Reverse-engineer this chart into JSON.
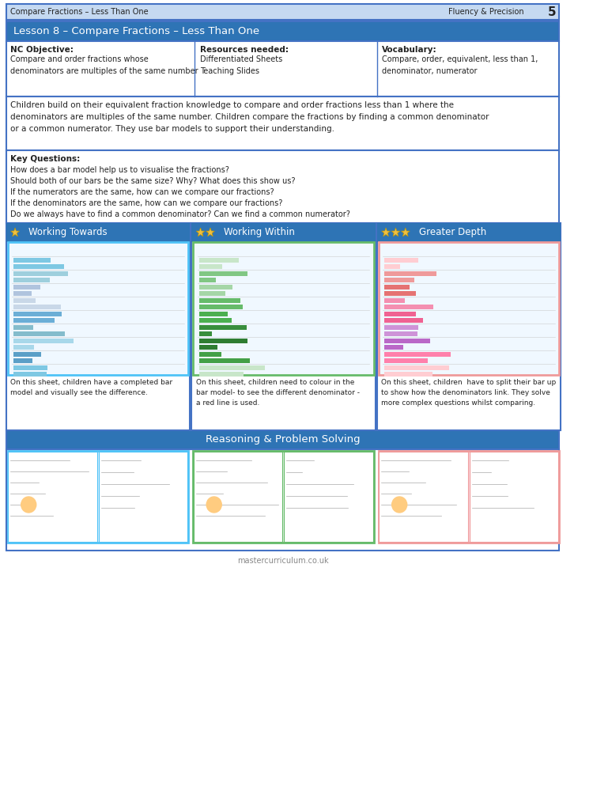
{
  "page_bg": "#ffffff",
  "header_bg": "#c5d9f1",
  "header_border": "#4472c4",
  "blue_header_bg": "#2e74b5",
  "blue_header_text": "#ffffff",
  "section_border": "#4472c4",
  "title_bar_text": "Lesson 8 – Compare Fractions – Less Than One",
  "top_left_text": "Compare Fractions – Less Than One",
  "top_right_label": "Fluency & Precision",
  "top_right_num": "5",
  "nc_objective_title": "NC Objective:",
  "nc_objective_body": "Compare and order fractions whose\ndenominators are multiples of the same number",
  "resources_title": "Resources needed:",
  "resources_body": "Differentiated Sheets\nTeaching Slides",
  "vocab_title": "Vocabulary:",
  "vocab_body": "Compare, order, equivalent, less than 1,\ndenominator, numerator",
  "description": "Children build on their equivalent fraction knowledge to compare and order fractions less than 1 where the\ndenominators are multiples of the same number. Children compare the fractions by finding a common denominator\nor a common numerator. They use bar models to support their understanding.",
  "key_questions_title": "Key Questions:",
  "key_questions": [
    "How does a bar model help us to visualise the fractions?",
    "Should both of our bars be the same size? Why? What does this show us?",
    "If the numerators are the same, how can we compare our fractions?",
    "If the denominators are the same, how can we compare our fractions?",
    "Do we always have to find a common denominator? Can we find a common numerator?"
  ],
  "col1_header": "Working Towards",
  "col2_header": "Working Within",
  "col3_header": "Greater Depth",
  "col1_stars": 1,
  "col2_stars": 2,
  "col3_stars": 3,
  "col1_desc": "On this sheet, children have a completed bar\nmodel and visually see the difference.",
  "col2_desc": "On this sheet, children need to colour in the\nbar model- to see the different denominator -\na red line is used.",
  "col3_desc": "On this sheet, children  have to split their bar up\nto show how the denominators link. They solve\nmore complex questions whilst comparing.",
  "reasoning_header": "Reasoning & Problem Solving",
  "footer_text": "mastercurriculum.co.uk",
  "star_color": "#f0c040",
  "col_border_colors": [
    "#4fc3f7",
    "#66bb6a",
    "#ef9a9a"
  ],
  "img_bg": "#f0f8ff",
  "bar_colors_1": [
    "#7ec8e3",
    "#9ecfdd",
    "#b0c4de",
    "#c9d8e8",
    "#6baed6",
    "#84bccc",
    "#a8d8ea",
    "#5b9fc7"
  ],
  "bar_colors_2": [
    "#c8e6c9",
    "#81c784",
    "#a5d6a7",
    "#66bb6a",
    "#4caf50",
    "#388e3c",
    "#2e7d32",
    "#43a047"
  ],
  "bar_colors_3": [
    "#ffcdd2",
    "#ef9a9a",
    "#e57373",
    "#f48fb1",
    "#f06292",
    "#ce93d8",
    "#ba68c8",
    "#ff80ab"
  ],
  "reasoning_img_colors": [
    "#e3f2fd",
    "#e8f5e9",
    "#fce4ec"
  ]
}
